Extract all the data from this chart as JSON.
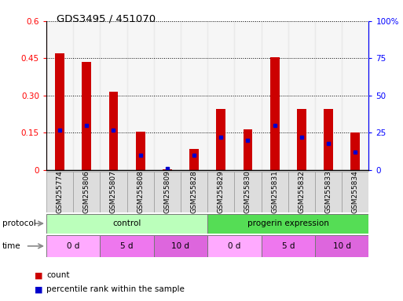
{
  "title": "GDS3495 / 451070",
  "samples": [
    "GSM255774",
    "GSM255806",
    "GSM255807",
    "GSM255808",
    "GSM255809",
    "GSM255828",
    "GSM255829",
    "GSM255830",
    "GSM255831",
    "GSM255832",
    "GSM255833",
    "GSM255834"
  ],
  "red_values": [
    0.47,
    0.435,
    0.315,
    0.155,
    0.002,
    0.085,
    0.245,
    0.165,
    0.455,
    0.245,
    0.245,
    0.15
  ],
  "blue_values_pct": [
    27,
    30,
    27,
    10,
    1,
    10,
    22,
    20,
    30,
    22,
    18,
    12
  ],
  "ylim_left": [
    0,
    0.6
  ],
  "ylim_right": [
    0,
    100
  ],
  "yticks_left": [
    0,
    0.15,
    0.3,
    0.45,
    0.6
  ],
  "yticks_right": [
    0,
    25,
    50,
    75,
    100
  ],
  "ytick_labels_left": [
    "0",
    "0.15",
    "0.30",
    "0.45",
    "0.6"
  ],
  "ytick_labels_right": [
    "0",
    "25",
    "50",
    "75",
    "100%"
  ],
  "protocol_groups": [
    {
      "label": "control",
      "start": 0,
      "end": 6,
      "color": "#bbffbb"
    },
    {
      "label": "progerin expression",
      "start": 6,
      "end": 12,
      "color": "#55dd55"
    }
  ],
  "time_groups": [
    {
      "label": "0 d",
      "start": 0,
      "end": 2,
      "color": "#ffaaff"
    },
    {
      "label": "5 d",
      "start": 2,
      "end": 4,
      "color": "#ee77ee"
    },
    {
      "label": "10 d",
      "start": 4,
      "end": 6,
      "color": "#dd66dd"
    },
    {
      "label": "0 d",
      "start": 6,
      "end": 8,
      "color": "#ffaaff"
    },
    {
      "label": "5 d",
      "start": 8,
      "end": 10,
      "color": "#ee77ee"
    },
    {
      "label": "10 d",
      "start": 10,
      "end": 12,
      "color": "#dd66dd"
    }
  ],
  "bar_color": "#cc0000",
  "dot_color": "#0000cc",
  "bg_color": "#ffffff",
  "col_bg_color": "#dddddd"
}
